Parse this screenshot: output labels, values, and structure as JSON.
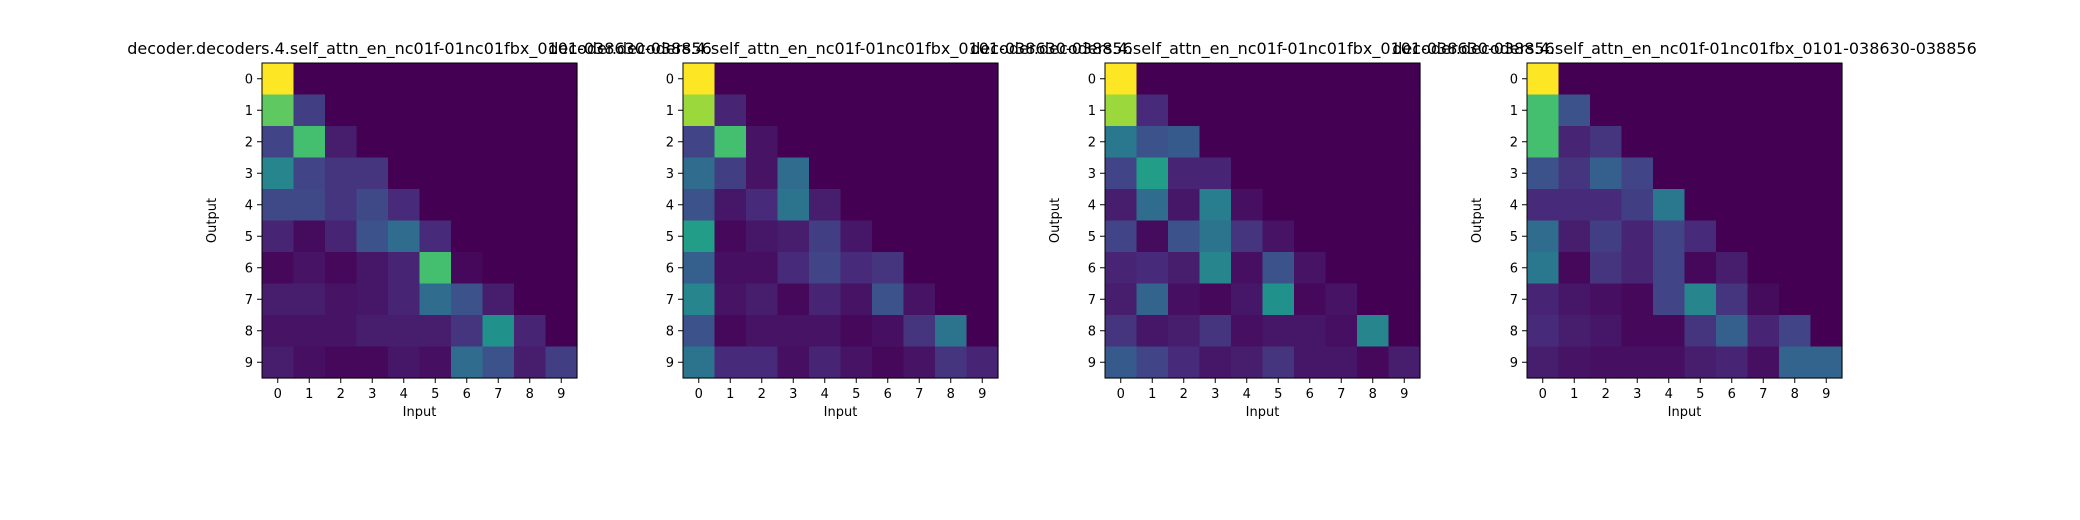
{
  "chart_data": [
    {
      "type": "heatmap",
      "title": "decoder.decoders.4.self_attn_en_nc01f-01nc01fbx_0101-038630-038856",
      "xlabel": "Input",
      "ylabel": "Output",
      "x_ticks": [
        "0",
        "1",
        "2",
        "3",
        "4",
        "5",
        "6",
        "7",
        "8",
        "9"
      ],
      "y_ticks": [
        "0",
        "1",
        "2",
        "3",
        "4",
        "5",
        "6",
        "7",
        "8",
        "9"
      ],
      "colormap": "viridis",
      "vrange": [
        0,
        1
      ],
      "values": [
        [
          1.0,
          0,
          0,
          0,
          0,
          0,
          0,
          0,
          0,
          0
        ],
        [
          0.75,
          0.18,
          0,
          0,
          0,
          0,
          0,
          0,
          0,
          0
        ],
        [
          0.2,
          0.7,
          0.08,
          0,
          0,
          0,
          0,
          0,
          0,
          0
        ],
        [
          0.45,
          0.2,
          0.15,
          0.15,
          0,
          0,
          0,
          0,
          0,
          0
        ],
        [
          0.22,
          0.22,
          0.15,
          0.22,
          0.12,
          0,
          0,
          0,
          0,
          0
        ],
        [
          0.1,
          0.03,
          0.1,
          0.25,
          0.35,
          0.12,
          0,
          0,
          0,
          0
        ],
        [
          0.02,
          0.05,
          0.02,
          0.06,
          0.1,
          0.7,
          0.02,
          0,
          0,
          0
        ],
        [
          0.08,
          0.08,
          0.05,
          0.06,
          0.1,
          0.35,
          0.25,
          0.08,
          0,
          0
        ],
        [
          0.05,
          0.05,
          0.05,
          0.08,
          0.08,
          0.08,
          0.15,
          0.5,
          0.1,
          0
        ],
        [
          0.08,
          0.04,
          0.02,
          0.02,
          0.06,
          0.04,
          0.35,
          0.25,
          0.08,
          0.18
        ]
      ]
    },
    {
      "type": "heatmap",
      "title": "decoder.decoders.4.self_attn_en_nc01f-01nc01fbx_0101-038630-038856",
      "xlabel": "Input",
      "ylabel": "",
      "x_ticks": [
        "0",
        "1",
        "2",
        "3",
        "4",
        "5",
        "6",
        "7",
        "8",
        "9"
      ],
      "y_ticks": [
        "0",
        "1",
        "2",
        "3",
        "4",
        "5",
        "6",
        "7",
        "8",
        "9"
      ],
      "colormap": "viridis",
      "vrange": [
        0,
        1
      ],
      "values": [
        [
          1.0,
          0,
          0,
          0,
          0,
          0,
          0,
          0,
          0,
          0
        ],
        [
          0.85,
          0.1,
          0,
          0,
          0,
          0,
          0,
          0,
          0,
          0
        ],
        [
          0.2,
          0.7,
          0.05,
          0,
          0,
          0,
          0,
          0,
          0,
          0
        ],
        [
          0.35,
          0.18,
          0.05,
          0.35,
          0,
          0,
          0,
          0,
          0,
          0
        ],
        [
          0.25,
          0.06,
          0.12,
          0.38,
          0.08,
          0,
          0,
          0,
          0,
          0
        ],
        [
          0.55,
          0.02,
          0.06,
          0.08,
          0.18,
          0.06,
          0,
          0,
          0,
          0
        ],
        [
          0.3,
          0.04,
          0.04,
          0.12,
          0.2,
          0.12,
          0.15,
          0,
          0,
          0
        ],
        [
          0.45,
          0.05,
          0.08,
          0.02,
          0.1,
          0.05,
          0.25,
          0.05,
          0,
          0
        ],
        [
          0.25,
          0.02,
          0.05,
          0.05,
          0.05,
          0.02,
          0.04,
          0.15,
          0.38,
          0
        ],
        [
          0.38,
          0.12,
          0.12,
          0.04,
          0.1,
          0.05,
          0.02,
          0.05,
          0.15,
          0.1
        ]
      ]
    },
    {
      "type": "heatmap",
      "title": "decoder.decoders.4.self_attn_en_nc01f-01nc01fbx_0101-038630-038856",
      "xlabel": "Input",
      "ylabel": "Output",
      "x_ticks": [
        "0",
        "1",
        "2",
        "3",
        "4",
        "5",
        "6",
        "7",
        "8",
        "9"
      ],
      "y_ticks": [
        "0",
        "1",
        "2",
        "3",
        "4",
        "5",
        "6",
        "7",
        "8",
        "9"
      ],
      "colormap": "viridis",
      "vrange": [
        0,
        1
      ],
      "values": [
        [
          1.0,
          0,
          0,
          0,
          0,
          0,
          0,
          0,
          0,
          0
        ],
        [
          0.85,
          0.12,
          0,
          0,
          0,
          0,
          0,
          0,
          0,
          0
        ],
        [
          0.4,
          0.25,
          0.28,
          0,
          0,
          0,
          0,
          0,
          0,
          0
        ],
        [
          0.2,
          0.55,
          0.1,
          0.1,
          0,
          0,
          0,
          0,
          0,
          0
        ],
        [
          0.08,
          0.35,
          0.06,
          0.42,
          0.04,
          0,
          0,
          0,
          0,
          0
        ],
        [
          0.2,
          0.03,
          0.25,
          0.38,
          0.15,
          0.05,
          0,
          0,
          0,
          0
        ],
        [
          0.1,
          0.12,
          0.08,
          0.45,
          0.04,
          0.25,
          0.05,
          0,
          0,
          0
        ],
        [
          0.08,
          0.32,
          0.04,
          0.02,
          0.06,
          0.5,
          0.02,
          0.05,
          0,
          0
        ],
        [
          0.15,
          0.06,
          0.08,
          0.15,
          0.04,
          0.06,
          0.06,
          0.04,
          0.45,
          0
        ],
        [
          0.28,
          0.2,
          0.12,
          0.06,
          0.08,
          0.15,
          0.06,
          0.06,
          0.02,
          0.08
        ]
      ]
    },
    {
      "type": "heatmap",
      "title": "decoder.decoders.4.self_attn_en_nc01f-01nc01fbx_0101-038630-038856",
      "xlabel": "Input",
      "ylabel": "Output",
      "x_ticks": [
        "0",
        "1",
        "2",
        "3",
        "4",
        "5",
        "6",
        "7",
        "8",
        "9"
      ],
      "y_ticks": [
        "0",
        "1",
        "2",
        "3",
        "4",
        "5",
        "6",
        "7",
        "8",
        "9"
      ],
      "colormap": "viridis",
      "vrange": [
        0,
        1
      ],
      "values": [
        [
          1.0,
          0,
          0,
          0,
          0,
          0,
          0,
          0,
          0,
          0
        ],
        [
          0.7,
          0.25,
          0,
          0,
          0,
          0,
          0,
          0,
          0,
          0
        ],
        [
          0.7,
          0.1,
          0.15,
          0,
          0,
          0,
          0,
          0,
          0,
          0
        ],
        [
          0.25,
          0.15,
          0.3,
          0.2,
          0,
          0,
          0,
          0,
          0,
          0
        ],
        [
          0.12,
          0.12,
          0.12,
          0.18,
          0.4,
          0,
          0,
          0,
          0,
          0
        ],
        [
          0.35,
          0.08,
          0.18,
          0.1,
          0.2,
          0.12,
          0,
          0,
          0,
          0
        ],
        [
          0.4,
          0.02,
          0.15,
          0.1,
          0.2,
          0.02,
          0.08,
          0,
          0,
          0
        ],
        [
          0.1,
          0.06,
          0.04,
          0.02,
          0.2,
          0.45,
          0.15,
          0.03,
          0,
          0
        ],
        [
          0.12,
          0.08,
          0.06,
          0.02,
          0.02,
          0.15,
          0.3,
          0.1,
          0.2,
          0
        ],
        [
          0.08,
          0.05,
          0.04,
          0.04,
          0.04,
          0.08,
          0.1,
          0.04,
          0.32,
          0.32
        ]
      ]
    }
  ]
}
